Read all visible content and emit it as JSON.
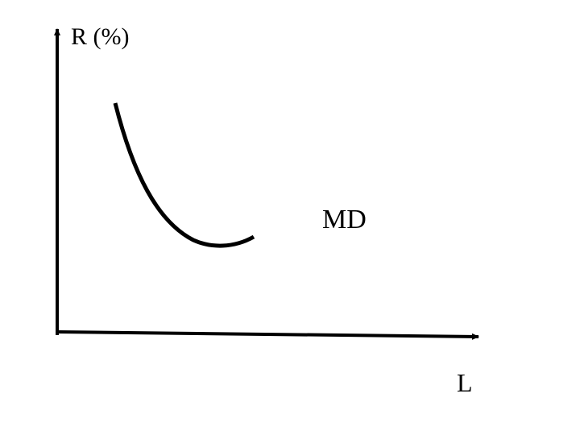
{
  "diagram": {
    "y_axis_label": "R (%)",
    "x_axis_label": "L",
    "curve_label": "MD",
    "colors": {
      "ink": "#000000",
      "background": "#ffffff"
    }
  }
}
